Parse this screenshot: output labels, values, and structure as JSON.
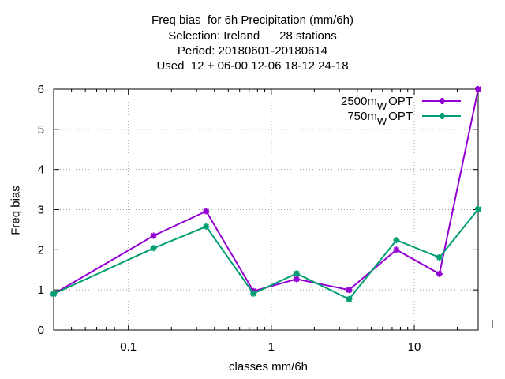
{
  "chart_data": {
    "type": "line",
    "title_lines": [
      "Freq bias  for 6h Precipitation (mm/6h)",
      "Selection: Ireland      28 stations",
      "Period: 20180601-20180614",
      "Used  12 + 06-00 12-06 18-12 24-18"
    ],
    "xlabel": "classes mm/6h",
    "ylabel": "Freq bias",
    "x_scale": "log",
    "xlim": [
      0.03,
      28
    ],
    "ylim": [
      0,
      6
    ],
    "x_ticks": [
      0.1,
      1,
      10
    ],
    "x_tick_labels": [
      "0.1",
      "1",
      "10"
    ],
    "y_ticks": [
      0,
      1,
      2,
      3,
      4,
      5,
      6
    ],
    "grid": true,
    "legend_position": "top-right",
    "x": [
      0.03,
      0.15,
      0.35,
      0.75,
      1.5,
      3.5,
      7.5,
      15,
      28
    ],
    "series": [
      {
        "name": "2500m",
        "sub": "W",
        "suffix": "OPT",
        "color": "#9400d3",
        "values": [
          0.9,
          2.35,
          2.96,
          0.97,
          1.27,
          1.0,
          2.0,
          1.4,
          6.0
        ]
      },
      {
        "name": "750m",
        "sub": "W",
        "suffix": "OPT",
        "color": "#009e73",
        "values": [
          0.9,
          2.04,
          2.58,
          0.91,
          1.41,
          0.77,
          2.24,
          1.81,
          3.01
        ]
      }
    ]
  }
}
